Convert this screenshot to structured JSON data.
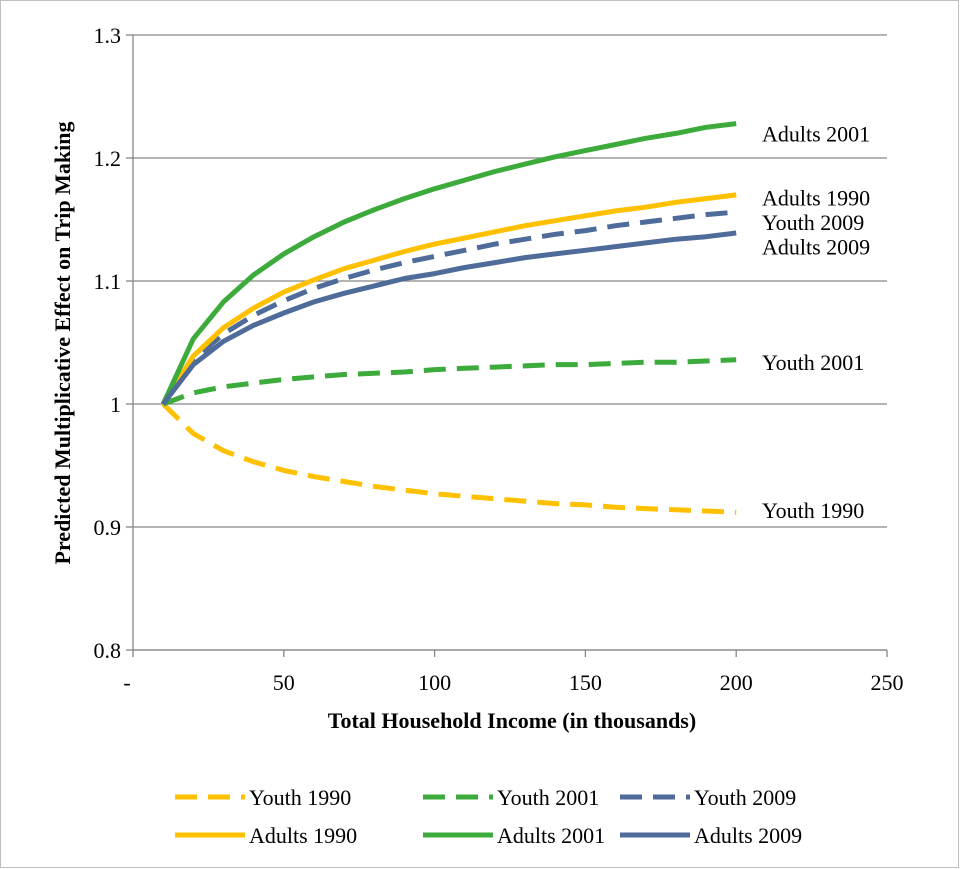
{
  "chart_data": {
    "type": "line",
    "title": "",
    "xlabel": "Total Household Income (in thousands)",
    "ylabel": "Predicted Multiplicative Effect on Trip Making",
    "xlim": [
      0,
      250
    ],
    "ylim": [
      0.8,
      1.3
    ],
    "x_ticks": [
      0,
      50,
      100,
      150,
      200,
      250
    ],
    "x_tick_labels": [
      "-",
      "50",
      "100",
      "150",
      "200",
      "250"
    ],
    "y_ticks": [
      0.8,
      0.9,
      1.0,
      1.1,
      1.2,
      1.3
    ],
    "y_tick_labels": [
      "0.8",
      "0.9",
      "1",
      "1.1",
      "1.2",
      "1.3"
    ],
    "grid": "horizontal",
    "legend": "bottom",
    "x": [
      10,
      20,
      30,
      40,
      50,
      60,
      70,
      80,
      90,
      100,
      110,
      120,
      130,
      140,
      150,
      160,
      170,
      180,
      190,
      200
    ],
    "series": [
      {
        "name": "Youth 1990",
        "color": "#FFC000",
        "dash": "dashed",
        "values": [
          1.0,
          0.976,
          0.962,
          0.953,
          0.946,
          0.941,
          0.937,
          0.933,
          0.93,
          0.927,
          0.925,
          0.923,
          0.921,
          0.919,
          0.918,
          0.916,
          0.915,
          0.914,
          0.913,
          0.912
        ]
      },
      {
        "name": "Youth 2001",
        "color": "#3CAB3C",
        "dash": "dashed",
        "values": [
          1.0,
          1.009,
          1.014,
          1.017,
          1.02,
          1.022,
          1.024,
          1.025,
          1.026,
          1.028,
          1.029,
          1.03,
          1.031,
          1.032,
          1.032,
          1.033,
          1.034,
          1.034,
          1.035,
          1.036
        ]
      },
      {
        "name": "Youth 2009",
        "color": "#4F6B9A",
        "dash": "dashed",
        "values": [
          1.0,
          1.036,
          1.057,
          1.072,
          1.084,
          1.094,
          1.102,
          1.109,
          1.115,
          1.12,
          1.125,
          1.13,
          1.134,
          1.138,
          1.141,
          1.145,
          1.148,
          1.151,
          1.154,
          1.156
        ]
      },
      {
        "name": "Adults 1990",
        "color": "#FFC000",
        "dash": "solid",
        "values": [
          1.0,
          1.039,
          1.062,
          1.078,
          1.091,
          1.101,
          1.11,
          1.117,
          1.124,
          1.13,
          1.135,
          1.14,
          1.145,
          1.149,
          1.153,
          1.157,
          1.16,
          1.164,
          1.167,
          1.17
        ]
      },
      {
        "name": "Adults 2001",
        "color": "#3CAB3C",
        "dash": "solid",
        "values": [
          1.0,
          1.053,
          1.083,
          1.105,
          1.122,
          1.136,
          1.148,
          1.158,
          1.167,
          1.175,
          1.182,
          1.189,
          1.195,
          1.201,
          1.206,
          1.211,
          1.216,
          1.22,
          1.225,
          1.228
        ]
      },
      {
        "name": "Adults 2009",
        "color": "#4F6B9A",
        "dash": "solid",
        "values": [
          1.0,
          1.032,
          1.051,
          1.064,
          1.074,
          1.083,
          1.09,
          1.096,
          1.102,
          1.106,
          1.111,
          1.115,
          1.119,
          1.122,
          1.125,
          1.128,
          1.131,
          1.134,
          1.136,
          1.139
        ]
      }
    ],
    "end_labels": [
      {
        "series": "Adults 2001",
        "text": "Adults 2001",
        "y": 1.22
      },
      {
        "series": "Adults 1990",
        "text": "Adults 1990",
        "y": 1.168
      },
      {
        "series": "Youth 2009",
        "text": "Youth 2009",
        "y": 1.148
      },
      {
        "series": "Adults 2009",
        "text": "Adults 2009",
        "y": 1.128
      },
      {
        "series": "Youth 2001",
        "text": "Youth 2001",
        "y": 1.034
      },
      {
        "series": "Youth 1990",
        "text": "Youth 1990",
        "y": 0.914
      }
    ]
  }
}
